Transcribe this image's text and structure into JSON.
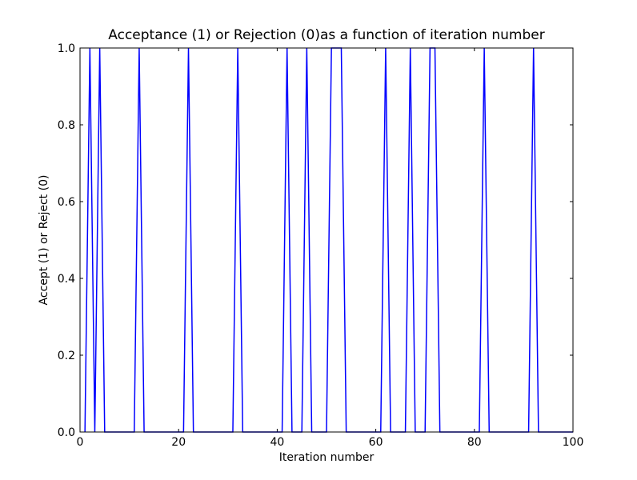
{
  "chart_data": {
    "type": "line",
    "title": "Acceptance (1) or Rejection (0)as a function of iteration  number",
    "xlabel": "Iteration number",
    "ylabel": "Accept (1) or Reject (0)",
    "xlim": [
      0,
      100
    ],
    "ylim": [
      0.0,
      1.0
    ],
    "xticks": [
      "0",
      "20",
      "40",
      "60",
      "80",
      "100"
    ],
    "yticks": [
      "0.0",
      "0.2",
      "0.4",
      "0.6",
      "0.8",
      "1.0"
    ],
    "grid": false,
    "series": [
      {
        "color": "#0000ff",
        "x_start": 1,
        "x_end": 100,
        "values": [
          0,
          1,
          0,
          1,
          0,
          0,
          0,
          0,
          0,
          0,
          0,
          1,
          0,
          0,
          0,
          0,
          0,
          0,
          0,
          0,
          0,
          1,
          0,
          0,
          0,
          0,
          0,
          0,
          0,
          0,
          0,
          1,
          0,
          0,
          0,
          0,
          0,
          0,
          0,
          0,
          0,
          1,
          0,
          0,
          0,
          1,
          0,
          0,
          0,
          0,
          1,
          1,
          1,
          0,
          0,
          0,
          0,
          0,
          0,
          0,
          0,
          1,
          0,
          0,
          0,
          0,
          1,
          0,
          0,
          0,
          1,
          1,
          0,
          0,
          0,
          0,
          0,
          0,
          0,
          0,
          0,
          1,
          0,
          0,
          0,
          0,
          0,
          0,
          0,
          0,
          0,
          1,
          0,
          0,
          0,
          0,
          0,
          0,
          0,
          0
        ]
      }
    ]
  }
}
